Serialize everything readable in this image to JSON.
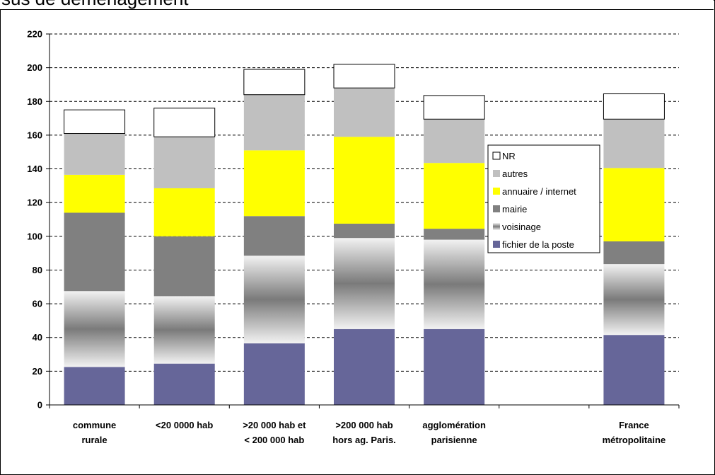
{
  "header": {
    "text": "sus de déménagement"
  },
  "chart_data": {
    "type": "bar",
    "stacked": true,
    "categories": [
      [
        "commune",
        "rurale"
      ],
      [
        "<20 0000 hab"
      ],
      [
        ">20 000 hab et",
        "< 200 000 hab"
      ],
      [
        ">200 000 hab",
        "hors ag. Paris."
      ],
      [
        "agglomération",
        "parisienne"
      ],
      [
        ""
      ],
      [
        "France",
        "métropolitaine"
      ]
    ],
    "series": [
      {
        "name": "fichier de la poste",
        "color": "#666699",
        "values": [
          22.5,
          24.5,
          36.5,
          45,
          45,
          null,
          41.5
        ]
      },
      {
        "name": "voisinage",
        "color": "gradient-grey",
        "values": [
          45,
          40,
          52,
          54,
          53,
          null,
          42
        ]
      },
      {
        "name": "mairie",
        "color": "#808080",
        "values": [
          46.5,
          35.5,
          23.5,
          8.5,
          6.5,
          null,
          13.5
        ]
      },
      {
        "name": "annuaire / internet",
        "color": "#ffff00",
        "values": [
          22.5,
          28.5,
          39,
          51.5,
          39,
          null,
          43.5
        ]
      },
      {
        "name": "autres",
        "color": "#c0c0c0",
        "values": [
          24.5,
          30.5,
          33,
          29,
          26,
          null,
          29
        ]
      },
      {
        "name": "NR",
        "color": "#ffffff",
        "values": [
          14,
          17,
          15,
          14,
          14,
          null,
          15
        ]
      }
    ],
    "ylim": [
      0,
      220
    ],
    "yticks": [
      0,
      20,
      40,
      60,
      80,
      100,
      120,
      140,
      160,
      180,
      200,
      220
    ],
    "grid": "horizontal-dashed",
    "legend": {
      "placement": "right-middle",
      "order": [
        "NR",
        "autres",
        "annuaire / internet",
        "mairie",
        "voisinage",
        "fichier de la poste"
      ]
    }
  }
}
